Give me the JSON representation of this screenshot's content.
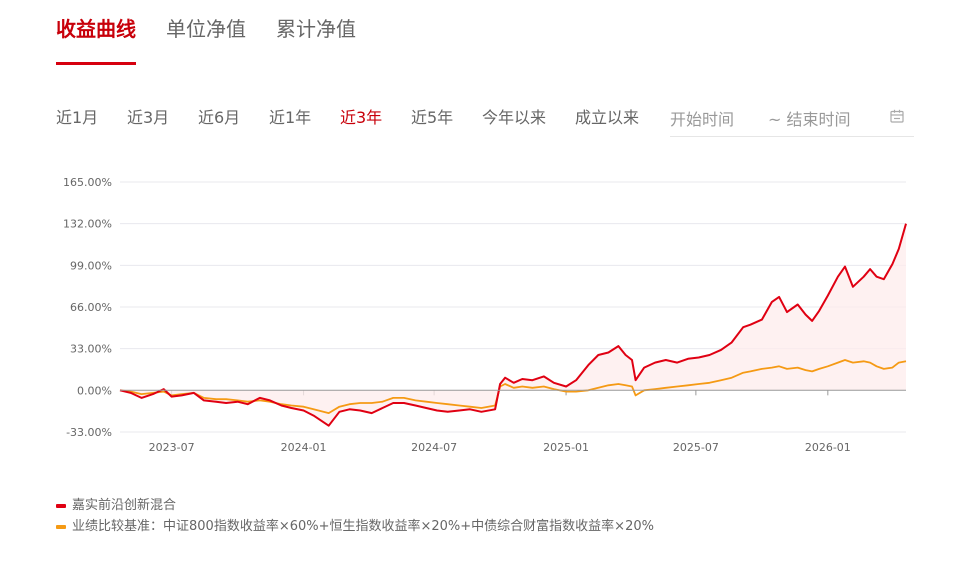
{
  "tabs": [
    {
      "label": "收益曲线",
      "active": true
    },
    {
      "label": "单位净值",
      "active": false
    },
    {
      "label": "累计净值",
      "active": false
    }
  ],
  "ranges": [
    {
      "label": "近1月",
      "active": false
    },
    {
      "label": "近3月",
      "active": false
    },
    {
      "label": "近6月",
      "active": false
    },
    {
      "label": "近1年",
      "active": false
    },
    {
      "label": "近3年",
      "active": true
    },
    {
      "label": "近5年",
      "active": false
    },
    {
      "label": "今年以来",
      "active": false
    },
    {
      "label": "成立以来",
      "active": false
    }
  ],
  "date_filter": {
    "start_placeholder": "开始时间",
    "end_placeholder": "~ 结束时间",
    "icon": "calendar-icon"
  },
  "colors": {
    "accent": "#c8000a",
    "fund_line": "#e00012",
    "benchmark_line": "#f59a14",
    "fill": "#fdecec"
  },
  "chart_data": {
    "type": "line",
    "x_range": [
      "2023-04-20",
      "2026-04-20"
    ],
    "x_ticks": [
      {
        "date": "2023-07-01",
        "label": "2023-07"
      },
      {
        "date": "2024-01-01",
        "label": "2024-01"
      },
      {
        "date": "2024-07-01",
        "label": "2024-07"
      },
      {
        "date": "2025-01-01",
        "label": "2025-01"
      },
      {
        "date": "2025-07-01",
        "label": "2025-07"
      },
      {
        "date": "2026-01-01",
        "label": "2026-01"
      }
    ],
    "y_ticks": [
      {
        "value": 165,
        "label": "165.00%"
      },
      {
        "value": 132,
        "label": "132.00%"
      },
      {
        "value": 99,
        "label": "99.00%"
      },
      {
        "value": 66,
        "label": "66.00%"
      },
      {
        "value": 33,
        "label": "33.00%"
      },
      {
        "value": 0,
        "label": "0.00%"
      },
      {
        "value": -33,
        "label": "-33.00%"
      }
    ],
    "ylim": [
      -33,
      165
    ],
    "grid": true,
    "legend_position": "bottom-left",
    "series": [
      {
        "name": "嘉实前沿创新混合",
        "color": "#e00012",
        "fill": true,
        "points": [
          [
            "2023-04-20",
            0
          ],
          [
            "2023-05-05",
            -2
          ],
          [
            "2023-05-20",
            -6
          ],
          [
            "2023-06-05",
            -3
          ],
          [
            "2023-06-20",
            1
          ],
          [
            "2023-07-01",
            -5
          ],
          [
            "2023-07-15",
            -4
          ],
          [
            "2023-08-01",
            -2
          ],
          [
            "2023-08-15",
            -8
          ],
          [
            "2023-09-01",
            -9
          ],
          [
            "2023-09-15",
            -10
          ],
          [
            "2023-10-01",
            -9
          ],
          [
            "2023-10-15",
            -11
          ],
          [
            "2023-11-01",
            -6
          ],
          [
            "2023-11-15",
            -8
          ],
          [
            "2023-12-01",
            -12
          ],
          [
            "2023-12-15",
            -14
          ],
          [
            "2024-01-01",
            -16
          ],
          [
            "2024-01-15",
            -20
          ],
          [
            "2024-02-05",
            -28
          ],
          [
            "2024-02-20",
            -17
          ],
          [
            "2024-03-05",
            -15
          ],
          [
            "2024-03-20",
            -16
          ],
          [
            "2024-04-05",
            -18
          ],
          [
            "2024-04-20",
            -14
          ],
          [
            "2024-05-05",
            -10
          ],
          [
            "2024-05-20",
            -10
          ],
          [
            "2024-06-05",
            -12
          ],
          [
            "2024-06-20",
            -14
          ],
          [
            "2024-07-05",
            -16
          ],
          [
            "2024-07-20",
            -17
          ],
          [
            "2024-08-05",
            -16
          ],
          [
            "2024-08-20",
            -15
          ],
          [
            "2024-09-05",
            -17
          ],
          [
            "2024-09-24",
            -15
          ],
          [
            "2024-10-01",
            5
          ],
          [
            "2024-10-08",
            10
          ],
          [
            "2024-10-20",
            6
          ],
          [
            "2024-11-01",
            9
          ],
          [
            "2024-11-15",
            8
          ],
          [
            "2024-12-01",
            11
          ],
          [
            "2024-12-15",
            6
          ],
          [
            "2025-01-01",
            3
          ],
          [
            "2025-01-15",
            8
          ],
          [
            "2025-02-01",
            20
          ],
          [
            "2025-02-15",
            28
          ],
          [
            "2025-03-01",
            30
          ],
          [
            "2025-03-15",
            35
          ],
          [
            "2025-03-25",
            28
          ],
          [
            "2025-04-03",
            24
          ],
          [
            "2025-04-08",
            8
          ],
          [
            "2025-04-20",
            18
          ],
          [
            "2025-05-05",
            22
          ],
          [
            "2025-05-20",
            24
          ],
          [
            "2025-06-05",
            22
          ],
          [
            "2025-06-20",
            25
          ],
          [
            "2025-07-05",
            26
          ],
          [
            "2025-07-20",
            28
          ],
          [
            "2025-08-05",
            32
          ],
          [
            "2025-08-20",
            38
          ],
          [
            "2025-09-05",
            50
          ],
          [
            "2025-09-15",
            52
          ],
          [
            "2025-10-01",
            56
          ],
          [
            "2025-10-15",
            70
          ],
          [
            "2025-10-25",
            74
          ],
          [
            "2025-11-05",
            62
          ],
          [
            "2025-11-20",
            68
          ],
          [
            "2025-12-01",
            60
          ],
          [
            "2025-12-10",
            55
          ],
          [
            "2025-12-20",
            63
          ],
          [
            "2026-01-01",
            75
          ],
          [
            "2026-01-15",
            90
          ],
          [
            "2026-01-25",
            98
          ],
          [
            "2026-02-05",
            82
          ],
          [
            "2026-02-20",
            90
          ],
          [
            "2026-03-01",
            96
          ],
          [
            "2026-03-10",
            90
          ],
          [
            "2026-03-20",
            88
          ],
          [
            "2026-04-01",
            100
          ],
          [
            "2026-04-10",
            112
          ],
          [
            "2026-04-20",
            132
          ]
        ]
      },
      {
        "name": "业绩比较基准：中证800指数收益率×60%+恒生指数收益率×20%+中债综合财富指数收益率×20%",
        "color": "#f59a14",
        "fill": false,
        "points": [
          [
            "2023-04-20",
            0
          ],
          [
            "2023-05-05",
            -1
          ],
          [
            "2023-05-20",
            -3
          ],
          [
            "2023-06-05",
            -2
          ],
          [
            "2023-06-20",
            -1
          ],
          [
            "2023-07-01",
            -4
          ],
          [
            "2023-07-15",
            -3
          ],
          [
            "2023-08-01",
            -2
          ],
          [
            "2023-08-15",
            -6
          ],
          [
            "2023-09-01",
            -7
          ],
          [
            "2023-09-15",
            -7
          ],
          [
            "2023-10-01",
            -8
          ],
          [
            "2023-10-15",
            -9
          ],
          [
            "2023-11-01",
            -8
          ],
          [
            "2023-11-15",
            -9
          ],
          [
            "2023-12-01",
            -11
          ],
          [
            "2023-12-15",
            -12
          ],
          [
            "2024-01-01",
            -13
          ],
          [
            "2024-01-15",
            -15
          ],
          [
            "2024-02-05",
            -18
          ],
          [
            "2024-02-20",
            -13
          ],
          [
            "2024-03-05",
            -11
          ],
          [
            "2024-03-20",
            -10
          ],
          [
            "2024-04-05",
            -10
          ],
          [
            "2024-04-20",
            -9
          ],
          [
            "2024-05-05",
            -6
          ],
          [
            "2024-05-20",
            -6
          ],
          [
            "2024-06-05",
            -8
          ],
          [
            "2024-06-20",
            -9
          ],
          [
            "2024-07-05",
            -10
          ],
          [
            "2024-07-20",
            -11
          ],
          [
            "2024-08-05",
            -12
          ],
          [
            "2024-08-20",
            -13
          ],
          [
            "2024-09-05",
            -14
          ],
          [
            "2024-09-24",
            -12
          ],
          [
            "2024-10-01",
            3
          ],
          [
            "2024-10-08",
            5
          ],
          [
            "2024-10-20",
            2
          ],
          [
            "2024-11-01",
            3
          ],
          [
            "2024-11-15",
            2
          ],
          [
            "2024-12-01",
            3
          ],
          [
            "2024-12-15",
            1
          ],
          [
            "2025-01-01",
            -1
          ],
          [
            "2025-01-15",
            -1
          ],
          [
            "2025-02-01",
            0
          ],
          [
            "2025-02-15",
            2
          ],
          [
            "2025-03-01",
            4
          ],
          [
            "2025-03-15",
            5
          ],
          [
            "2025-03-25",
            4
          ],
          [
            "2025-04-03",
            3
          ],
          [
            "2025-04-08",
            -4
          ],
          [
            "2025-04-20",
            0
          ],
          [
            "2025-05-05",
            1
          ],
          [
            "2025-05-20",
            2
          ],
          [
            "2025-06-05",
            3
          ],
          [
            "2025-06-20",
            4
          ],
          [
            "2025-07-05",
            5
          ],
          [
            "2025-07-20",
            6
          ],
          [
            "2025-08-05",
            8
          ],
          [
            "2025-08-20",
            10
          ],
          [
            "2025-09-05",
            14
          ],
          [
            "2025-09-15",
            15
          ],
          [
            "2025-10-01",
            17
          ],
          [
            "2025-10-15",
            18
          ],
          [
            "2025-10-25",
            19
          ],
          [
            "2025-11-05",
            17
          ],
          [
            "2025-11-20",
            18
          ],
          [
            "2025-12-01",
            16
          ],
          [
            "2025-12-10",
            15
          ],
          [
            "2025-12-20",
            17
          ],
          [
            "2026-01-01",
            19
          ],
          [
            "2026-01-15",
            22
          ],
          [
            "2026-01-25",
            24
          ],
          [
            "2026-02-05",
            22
          ],
          [
            "2026-02-20",
            23
          ],
          [
            "2026-03-01",
            22
          ],
          [
            "2026-03-10",
            19
          ],
          [
            "2026-03-20",
            17
          ],
          [
            "2026-04-01",
            18
          ],
          [
            "2026-04-10",
            22
          ],
          [
            "2026-04-20",
            23
          ]
        ]
      }
    ]
  }
}
